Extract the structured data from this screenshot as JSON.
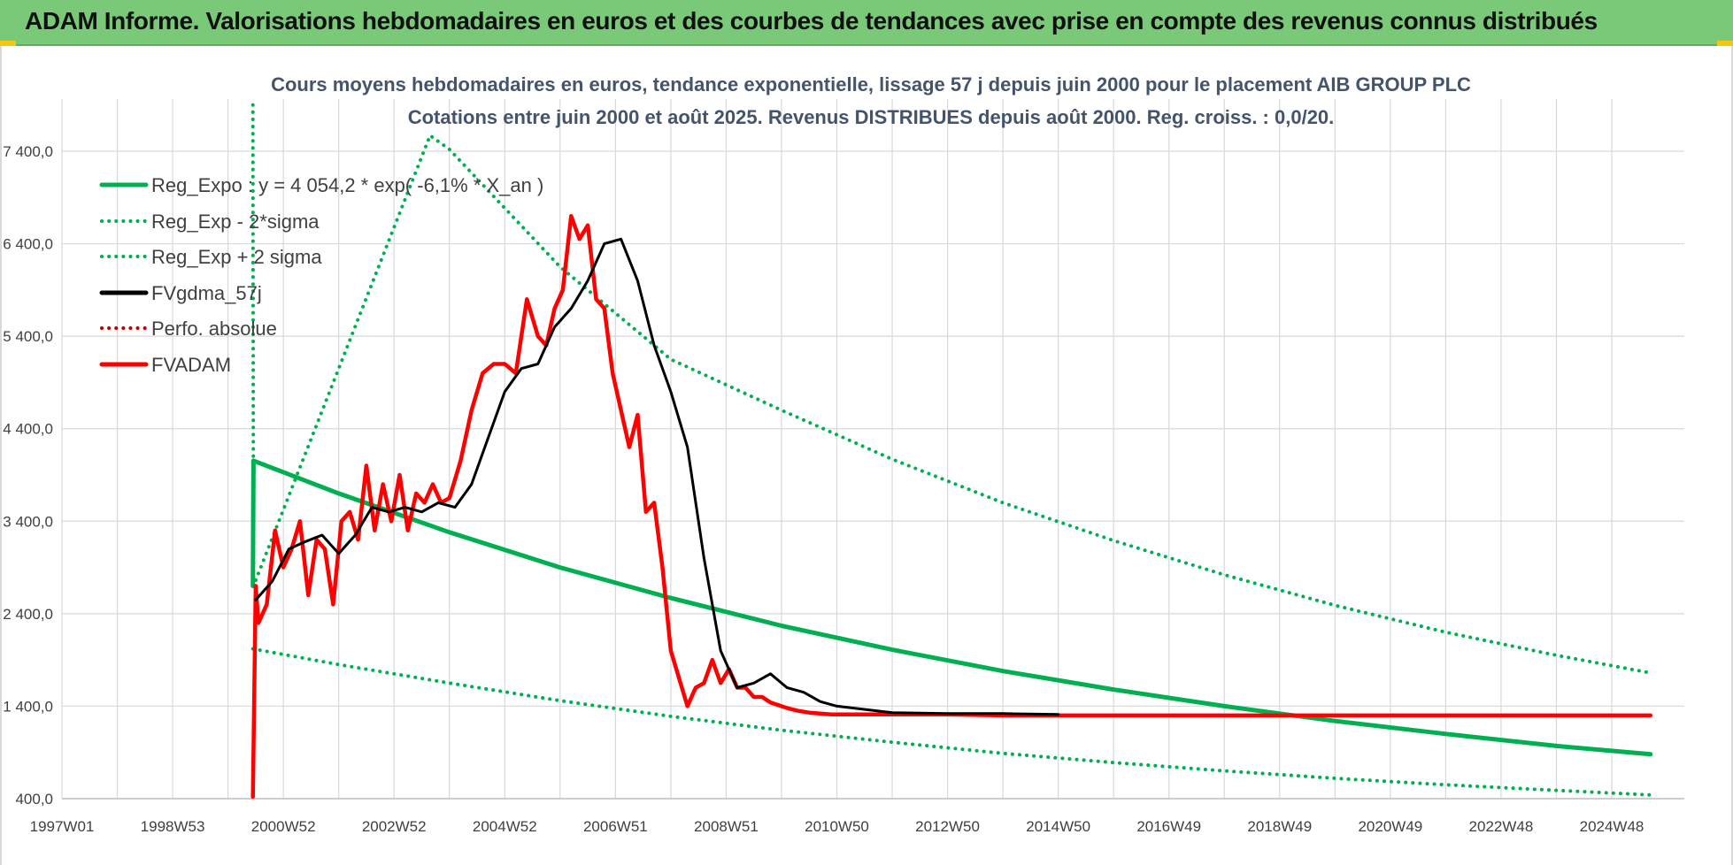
{
  "banner": {
    "title": "ADAM Informe. Valorisations hebdomadaires en euros et des courbes de tendances avec prise en compte des revenus connus distribués"
  },
  "colors": {
    "banner_bg": "#79c979",
    "regression_green": "#00b050",
    "fvgdma_black": "#000000",
    "fvadam_red": "#ff0000",
    "grid": "#d9d9d9"
  },
  "chart_data": {
    "type": "line",
    "title": "Cours moyens hebdomadaires en euros, tendance exponentielle, lissage 57 j depuis juin 2000 pour le placement AIB GROUP PLC",
    "subtitle": "Cotations entre juin 2000 et août 2025. Revenus DISTRIBUES depuis août 2000. Reg. croiss. : 0,0/20.",
    "xlabel": "",
    "ylabel": "",
    "ylim": [
      400,
      7900
    ],
    "xlim": [
      1997.0,
      2025.7
    ],
    "y_ticks": [
      "400,0",
      "1 400,0",
      "2 400,0",
      "3 400,0",
      "4 400,0",
      "5 400,0",
      "6 400,0",
      "7 400,0"
    ],
    "y_tick_values": [
      400,
      1400,
      2400,
      3400,
      4400,
      5400,
      6400,
      7400
    ],
    "x_ticks": [
      "1997W01",
      "1998W53",
      "2000W52",
      "2002W52",
      "2004W52",
      "2006W51",
      "2008W51",
      "2010W50",
      "2012W50",
      "2014W50",
      "2016W49",
      "2018W49",
      "2020W49",
      "2022W48",
      "2024W48"
    ],
    "x_tick_values": [
      1997.0,
      1999.0,
      2001.0,
      2003.0,
      2005.0,
      2007.0,
      2009.0,
      2011.0,
      2013.0,
      2015.0,
      2017.0,
      2019.0,
      2021.0,
      2023.0,
      2025.0
    ],
    "grid": true,
    "legend_placement": "top-left",
    "series": [
      {
        "name": "Reg_Expo : y = 4 054,2 * exp( -6,1% *  X_an )",
        "style": "solid",
        "color": "#00b050",
        "x": [
          2000.45,
          2000.46,
          2002,
          2004,
          2006,
          2008,
          2010,
          2012,
          2014,
          2016,
          2018,
          2020,
          2022,
          2024,
          2025.7
        ],
        "y": [
          2700,
          4054,
          3700,
          3280,
          2900,
          2570,
          2270,
          2010,
          1780,
          1580,
          1400,
          1240,
          1100,
          970,
          880
        ]
      },
      {
        "name": "Reg_Exp - 2*sigma",
        "style": "dotted",
        "color": "#00b050",
        "x": [
          2000.45,
          2002,
          2004,
          2006,
          2008,
          2010,
          2012,
          2014,
          2016,
          2018,
          2020,
          2022,
          2024,
          2025.7
        ],
        "y": [
          2020,
          1850,
          1650,
          1460,
          1290,
          1140,
          1010,
          890,
          790,
          700,
          620,
          550,
          490,
          440
        ]
      },
      {
        "name": "Reg_Exp + 2 sigma",
        "style": "dotted",
        "color": "#00b050",
        "x": [
          2000.45,
          2000.46,
          2003.65,
          2004,
          2006,
          2008,
          2010,
          2012,
          2014,
          2016,
          2018,
          2020,
          2022,
          2024,
          2025.7
        ],
        "y": [
          7900,
          2700,
          7570,
          7420,
          6150,
          5150,
          4600,
          4070,
          3600,
          3190,
          2820,
          2490,
          2200,
          1950,
          1760
        ]
      },
      {
        "name": "FVgdma_57j",
        "style": "solid",
        "color": "#000000",
        "x": [
          2000.5,
          2000.8,
          2001.1,
          2001.4,
          2001.7,
          2002.0,
          2002.3,
          2002.6,
          2002.9,
          2003.2,
          2003.5,
          2003.8,
          2004.1,
          2004.4,
          2004.7,
          2005.0,
          2005.3,
          2005.6,
          2005.9,
          2006.2,
          2006.5,
          2006.8,
          2007.1,
          2007.4,
          2007.7,
          2008.0,
          2008.3,
          2008.6,
          2008.9,
          2009.2,
          2009.5,
          2009.8,
          2010.1,
          2010.4,
          2010.7,
          2011.0,
          2012,
          2013,
          2014,
          2015
        ],
        "y": [
          2550,
          2750,
          3100,
          3180,
          3250,
          3050,
          3250,
          3550,
          3500,
          3550,
          3500,
          3600,
          3550,
          3800,
          4300,
          4800,
          5050,
          5100,
          5500,
          5700,
          6000,
          6400,
          6450,
          6000,
          5300,
          4800,
          4200,
          3000,
          2000,
          1600,
          1650,
          1750,
          1600,
          1550,
          1450,
          1400,
          1330,
          1320,
          1320,
          1310
        ]
      },
      {
        "name": "Perfo. absolue",
        "style": "dotted",
        "color": "#c00000",
        "x": [],
        "y": []
      },
      {
        "name": "FVADAM",
        "style": "solid",
        "color": "#ff0000",
        "x": [
          2000.45,
          2000.5,
          2000.55,
          2000.7,
          2000.85,
          2001.0,
          2001.15,
          2001.3,
          2001.45,
          2001.6,
          2001.75,
          2001.9,
          2002.05,
          2002.2,
          2002.35,
          2002.5,
          2002.65,
          2002.8,
          2002.95,
          2003.1,
          2003.25,
          2003.4,
          2003.55,
          2003.7,
          2003.85,
          2004.0,
          2004.2,
          2004.4,
          2004.6,
          2004.8,
          2005.0,
          2005.2,
          2005.4,
          2005.6,
          2005.75,
          2005.9,
          2006.05,
          2006.2,
          2006.35,
          2006.5,
          2006.65,
          2006.8,
          2006.95,
          2007.1,
          2007.25,
          2007.4,
          2007.55,
          2007.7,
          2007.85,
          2008.0,
          2008.15,
          2008.3,
          2008.45,
          2008.6,
          2008.75,
          2008.9,
          2009.05,
          2009.2,
          2009.35,
          2009.5,
          2009.65,
          2009.8,
          2009.95,
          2010.1,
          2010.3,
          2010.5,
          2010.7,
          2010.9,
          2011.1,
          2011.3,
          2011.6,
          2012,
          2013,
          2014,
          2015,
          2016,
          2018,
          2020,
          2022,
          2024,
          2025.7
        ],
        "y": [
          420,
          2700,
          2300,
          2500,
          3300,
          2900,
          3100,
          3400,
          2600,
          3200,
          3100,
          2500,
          3400,
          3500,
          3200,
          4000,
          3300,
          3800,
          3400,
          3900,
          3300,
          3700,
          3600,
          3800,
          3600,
          3650,
          4050,
          4600,
          5000,
          5100,
          5100,
          5000,
          5800,
          5400,
          5300,
          5700,
          5900,
          6700,
          6450,
          6600,
          5800,
          5700,
          5000,
          4600,
          4200,
          4550,
          3500,
          3600,
          2900,
          2000,
          1700,
          1400,
          1600,
          1650,
          1900,
          1650,
          1800,
          1600,
          1600,
          1500,
          1500,
          1440,
          1410,
          1380,
          1350,
          1330,
          1320,
          1310,
          1310,
          1310,
          1310,
          1310,
          1310,
          1300,
          1300,
          1300,
          1300,
          1300,
          1300,
          1300,
          1300
        ]
      }
    ]
  }
}
